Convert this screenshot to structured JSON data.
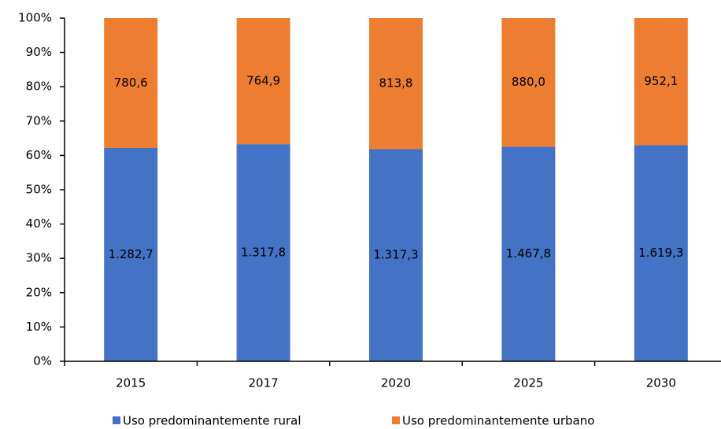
{
  "chart_data": {
    "type": "bar",
    "stacking": "percent",
    "categories": [
      "2015",
      "2017",
      "2020",
      "2025",
      "2030"
    ],
    "series": [
      {
        "name": "Uso predominantemente rural",
        "color": "#4472c4",
        "values": [
          1282.7,
          1317.8,
          1317.3,
          1467.8,
          1619.3
        ],
        "value_labels": [
          "1.282,7",
          "1.317,8",
          "1.317,3",
          "1.467,8",
          "1.619,3"
        ]
      },
      {
        "name": "Uso predominantemente urbano",
        "color": "#ed7d31",
        "values": [
          780.6,
          764.9,
          813.8,
          880.0,
          952.1
        ],
        "value_labels": [
          "780,6",
          "764,9",
          "813,8",
          "880,0",
          "952,1"
        ]
      }
    ],
    "ylim": [
      0,
      100
    ],
    "yticks": [
      {
        "value": 0,
        "label": "0%"
      },
      {
        "value": 10,
        "label": "10%"
      },
      {
        "value": 20,
        "label": "20%"
      },
      {
        "value": 30,
        "label": "30%"
      },
      {
        "value": 40,
        "label": "40%"
      },
      {
        "value": 50,
        "label": "50%"
      },
      {
        "value": 60,
        "label": "60%"
      },
      {
        "value": 70,
        "label": "70%"
      },
      {
        "value": 80,
        "label": "80%"
      },
      {
        "value": 90,
        "label": "90%"
      },
      {
        "value": 100,
        "label": "100%"
      }
    ],
    "grid": false,
    "legend": "bottom"
  }
}
